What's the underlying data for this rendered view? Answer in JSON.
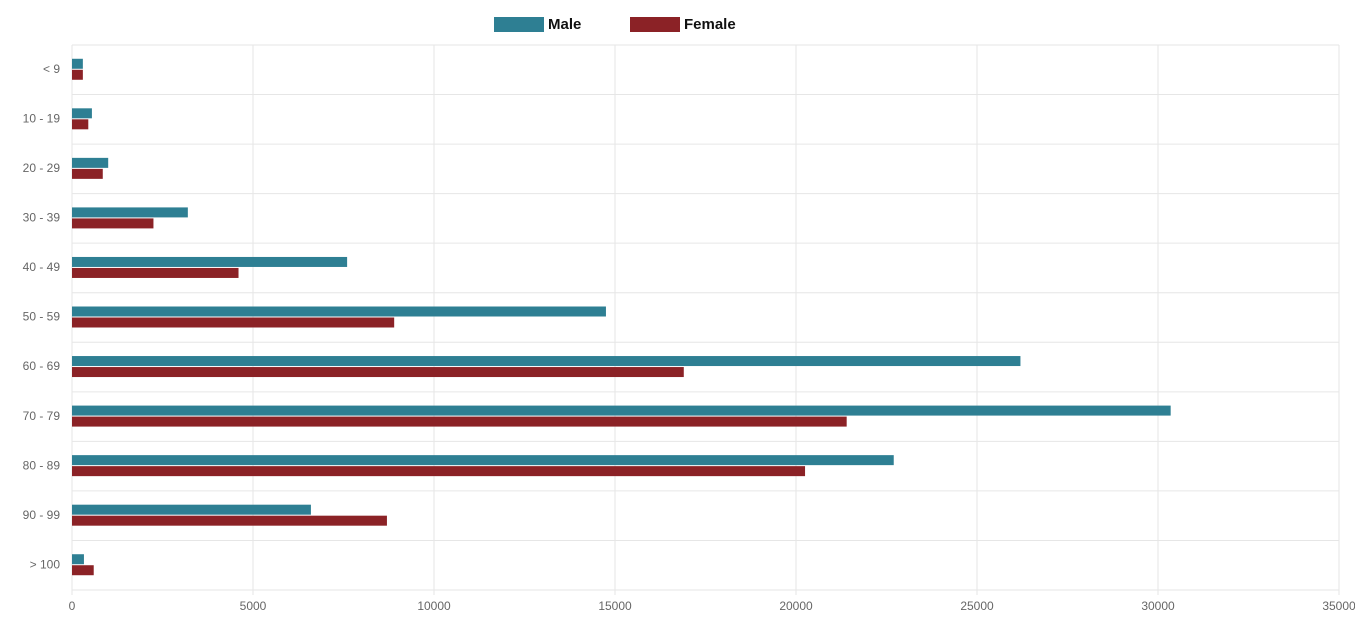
{
  "chart_data": {
    "type": "hbar",
    "categories": [
      "< 9",
      "10 - 19",
      "20 - 29",
      "30 - 39",
      "40 - 49",
      "50 - 59",
      "60 - 69",
      "70 - 79",
      "80 - 89",
      "90 - 99",
      "> 100"
    ],
    "series": [
      {
        "name": "Male",
        "color": "#2e7f93",
        "values": [
          300,
          550,
          1000,
          3200,
          7600,
          14750,
          26200,
          30350,
          22700,
          6600,
          330
        ]
      },
      {
        "name": "Female",
        "color": "#8b2226",
        "values": [
          300,
          450,
          850,
          2250,
          4600,
          8900,
          16900,
          21400,
          20250,
          8700,
          600
        ]
      }
    ],
    "xlim": [
      0,
      35000
    ],
    "xticks": [
      0,
      5000,
      10000,
      15000,
      20000,
      25000,
      30000,
      35000
    ],
    "grid": true,
    "legend": "top"
  }
}
